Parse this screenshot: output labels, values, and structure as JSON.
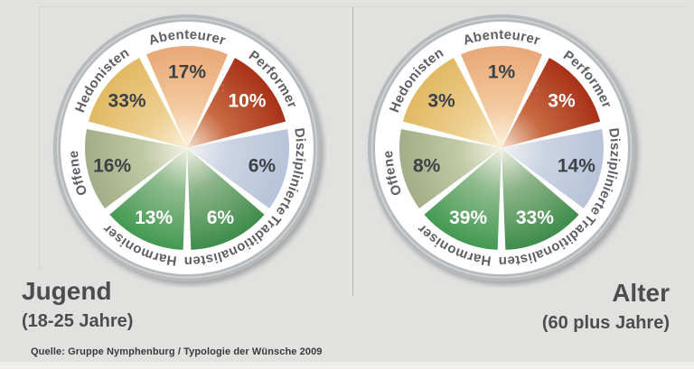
{
  "page": {
    "background": "#e1e1e0"
  },
  "source_note": "Quelle: Gruppe Nymphenburg / Typologie der Wünsche 2009",
  "palette": {
    "ring_outer": "#b7babc",
    "ring_inner": "#ffffff",
    "ring_highlight": "rgba(255,255,255,0.38)",
    "ring_label": "#5c5f63",
    "value_dark": "#3d4246",
    "value_light": "#ffffff",
    "title": "#4d4d4d",
    "divider": "#b3bbb1",
    "artifact_dash": "#d4b48c"
  },
  "charts": [
    {
      "title": "Jugend",
      "subtitle": "(18-25 Jahre)",
      "segments": [
        {
          "label": "Abenteurer",
          "value": "17%",
          "value_style": "dark",
          "colors": [
            "#fdf2e0",
            "#f3c99e",
            "#e9a878"
          ]
        },
        {
          "label": "Performer",
          "value": "10%",
          "value_style": "light",
          "colors": [
            "#f6e0cb",
            "#c76a43",
            "#a93119"
          ]
        },
        {
          "label": "Disziplinierte",
          "value": "6%",
          "value_style": "dark",
          "colors": [
            "#f3f4f3",
            "#ccd4e3",
            "#b8c3d9"
          ]
        },
        {
          "label": "Traditionalisten",
          "value": "6%",
          "value_style": "light",
          "colors": [
            "#f3f1e4",
            "#8cb489",
            "#3e8c4b"
          ]
        },
        {
          "label": "Harmoniser",
          "value": "13%",
          "value_style": "light",
          "colors": [
            "#f3f1e4",
            "#90bc8f",
            "#439952"
          ]
        },
        {
          "label": "Offene",
          "value": "16%",
          "value_style": "dark",
          "colors": [
            "#f5f2e6",
            "#c1caa6",
            "#a2ae87"
          ]
        },
        {
          "label": "Hedonisten",
          "value": "33%",
          "value_style": "dark",
          "colors": [
            "#faefd5",
            "#edcf90",
            "#e2b863"
          ]
        }
      ]
    },
    {
      "title": "Alter",
      "subtitle": "(60 plus Jahre)",
      "segments": [
        {
          "label": "Abenteurer",
          "value": "1%",
          "value_style": "dark",
          "colors": [
            "#fdf2e0",
            "#f3c99e",
            "#e9a878"
          ]
        },
        {
          "label": "Performer",
          "value": "3%",
          "value_style": "light",
          "colors": [
            "#f6e0cb",
            "#c76a43",
            "#a93119"
          ]
        },
        {
          "label": "Disziplinierte",
          "value": "14%",
          "value_style": "dark",
          "colors": [
            "#f3f4f3",
            "#ccd4e3",
            "#b8c3d9"
          ]
        },
        {
          "label": "Traditionalisten",
          "value": "33%",
          "value_style": "light",
          "colors": [
            "#f3f1e4",
            "#8cb489",
            "#3e8c4b"
          ]
        },
        {
          "label": "Harmoniser",
          "value": "39%",
          "value_style": "light",
          "colors": [
            "#f3f1e4",
            "#90bc8f",
            "#439952"
          ]
        },
        {
          "label": "Offene",
          "value": "8%",
          "value_style": "dark",
          "colors": [
            "#f5f2e6",
            "#c1caa6",
            "#a2ae87"
          ]
        },
        {
          "label": "Hedonisten",
          "value": "3%",
          "value_style": "dark",
          "colors": [
            "#faefd5",
            "#edcf90",
            "#e2b863"
          ]
        }
      ]
    }
  ],
  "chart_data": [
    {
      "type": "pie",
      "title": "Jugend (18-25 Jahre)",
      "categories": [
        "Abenteurer",
        "Performer",
        "Disziplinierte",
        "Traditionalisten",
        "Harmoniser",
        "Offene",
        "Hedonisten"
      ],
      "values": [
        17,
        10,
        6,
        6,
        13,
        16,
        33
      ],
      "unit": "%",
      "layout": "equal-angle 7-segment wheel, category labels on white ring, percentage values inside segments, clockwise from top"
    },
    {
      "type": "pie",
      "title": "Alter (60 plus Jahre)",
      "categories": [
        "Abenteurer",
        "Performer",
        "Disziplinierte",
        "Traditionalisten",
        "Harmoniser",
        "Offene",
        "Hedonisten"
      ],
      "values": [
        1,
        3,
        14,
        33,
        39,
        8,
        3
      ],
      "unit": "%",
      "layout": "equal-angle 7-segment wheel, category labels on white ring, percentage values inside segments, clockwise from top"
    }
  ]
}
